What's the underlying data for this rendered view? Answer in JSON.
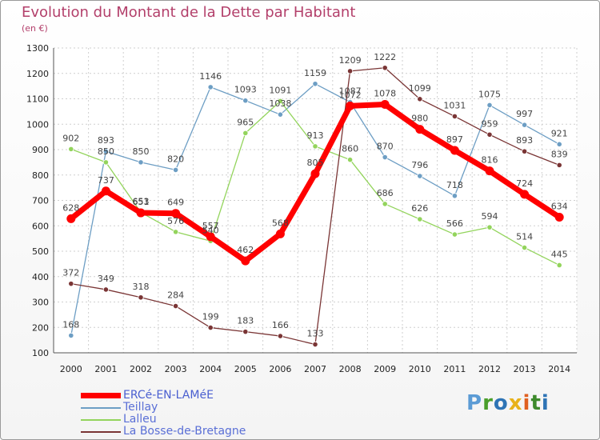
{
  "title": "Evolution du Montant de la Dette par Habitant",
  "unit_label": "(en €)",
  "logo": {
    "text": "Proxiti",
    "letters": [
      {
        "ch": "P",
        "color": "#5b9bd5"
      },
      {
        "ch": "r",
        "color": "#4a9e2a"
      },
      {
        "ch": "o",
        "color": "#2e74b5"
      },
      {
        "ch": "x",
        "color": "#e8b21a"
      },
      {
        "ch": "i",
        "color": "#e06020"
      },
      {
        "ch": "t",
        "color": "#3d8a2c"
      },
      {
        "ch": "i",
        "color": "#2e74b5"
      }
    ]
  },
  "chart_data": {
    "type": "line",
    "title": "Evolution du Montant de la Dette par Habitant",
    "ylabel": "(en €)",
    "xlabel": "",
    "ylim": [
      100,
      1300
    ],
    "y_ticks": [
      100,
      200,
      300,
      400,
      500,
      600,
      700,
      800,
      900,
      1000,
      1100,
      1200,
      1300
    ],
    "grid": true,
    "legend_position": "bottom-left",
    "categories": [
      "2000",
      "2001",
      "2002",
      "2003",
      "2004",
      "2005",
      "2006",
      "2007",
      "2008",
      "2009",
      "2010",
      "2011",
      "2012",
      "2013",
      "2014"
    ],
    "series": [
      {
        "name": "Teillay",
        "color": "#6d9ec4",
        "values": [
          168,
          893,
          850,
          820,
          1146,
          1093,
          1038,
          1159,
          1087,
          870,
          796,
          718,
          1075,
          997,
          921
        ]
      },
      {
        "name": "Lalleu",
        "color": "#93d45c",
        "values": [
          902,
          850,
          653,
          576,
          540,
          965,
          1091,
          913,
          860,
          686,
          626,
          566,
          594,
          514,
          445
        ]
      },
      {
        "name": "La Bosse-de-Bretagne",
        "color": "#7a3535",
        "values": [
          372,
          349,
          318,
          284,
          199,
          183,
          166,
          133,
          1209,
          1222,
          1099,
          1031,
          959,
          893,
          839
        ]
      },
      {
        "name": "ERCé-EN-LAMéE",
        "color": "#ff0000",
        "values": [
          628,
          737,
          651,
          649,
          557,
          462,
          568,
          805,
          1072,
          1078,
          980,
          897,
          816,
          724,
          634
        ]
      }
    ]
  }
}
